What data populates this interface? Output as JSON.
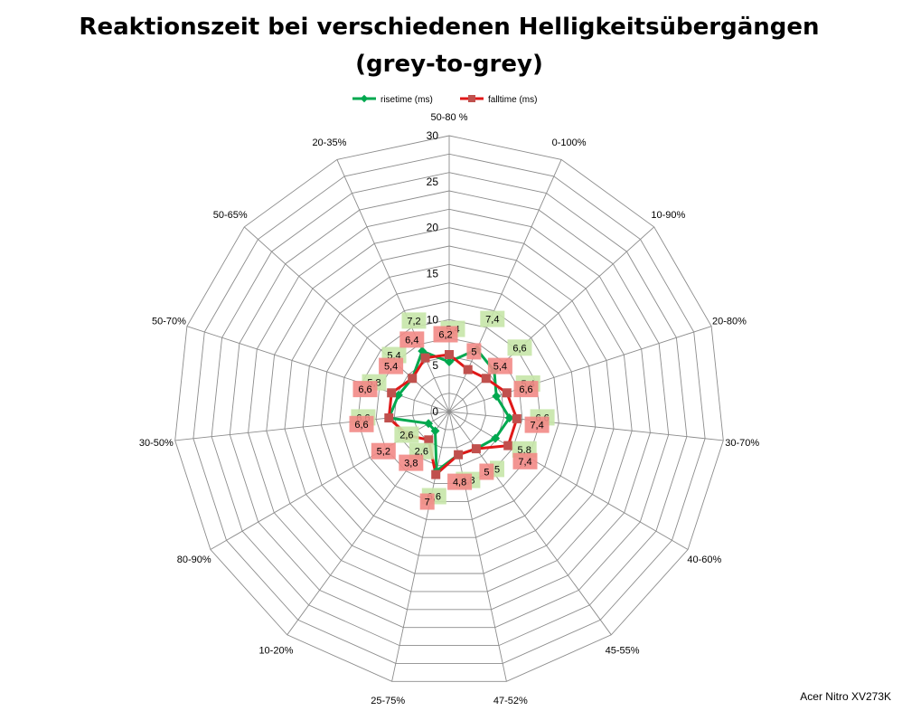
{
  "chart_data": {
    "type": "radar",
    "title": "Reaktionszeit bei verschiedenen Helligkeitsübergängen",
    "subtitle": "(grey-to-grey)",
    "categories": [
      "50-80 %",
      "0-100%",
      "10-90%",
      "20-80%",
      "30-70%",
      "40-60%",
      "45-55%",
      "47-52%",
      "25-75%",
      "10-20%",
      "80-90%",
      "30-50%",
      "50-70%",
      "50-65%",
      "20-35%"
    ],
    "rlim": [
      0,
      30
    ],
    "ticks": [
      0,
      5,
      10,
      15,
      20,
      25,
      30
    ],
    "grid": true,
    "legend_position": "top",
    "series": [
      {
        "name": "risetime (ms)",
        "color": "#00a84f",
        "marker": "diamond",
        "values": [
          5.4,
          7.4,
          6.6,
          5.4,
          6.6,
          5.8,
          5,
          4.8,
          6.6,
          2.6,
          2.6,
          6.6,
          5.8,
          5.4,
          7.2
        ],
        "labels": [
          "5,4",
          "7,4",
          "6,6",
          "5,4",
          "6,6",
          "5,8",
          "5",
          "4,8",
          "6,6",
          "2,6",
          "2,6",
          "6,6",
          "5,8",
          "5,4",
          "7,2"
        ]
      },
      {
        "name": "falltime (ms)",
        "color": "#e01818",
        "marker": "square",
        "values": [
          6.2,
          5,
          5.4,
          6.6,
          7.4,
          7.4,
          5,
          4.8,
          7,
          3.8,
          5.2,
          6.6,
          6.6,
          5.4,
          6.4
        ],
        "labels": [
          "6,2",
          "5",
          "5,4",
          "6,6",
          "7,4",
          "7,4",
          "5",
          "4,8",
          "7",
          "3,8",
          "5,2",
          "6,6",
          "6,6",
          "5,4",
          "6,4"
        ]
      }
    ]
  },
  "footer": "Acer Nitro XV273K"
}
